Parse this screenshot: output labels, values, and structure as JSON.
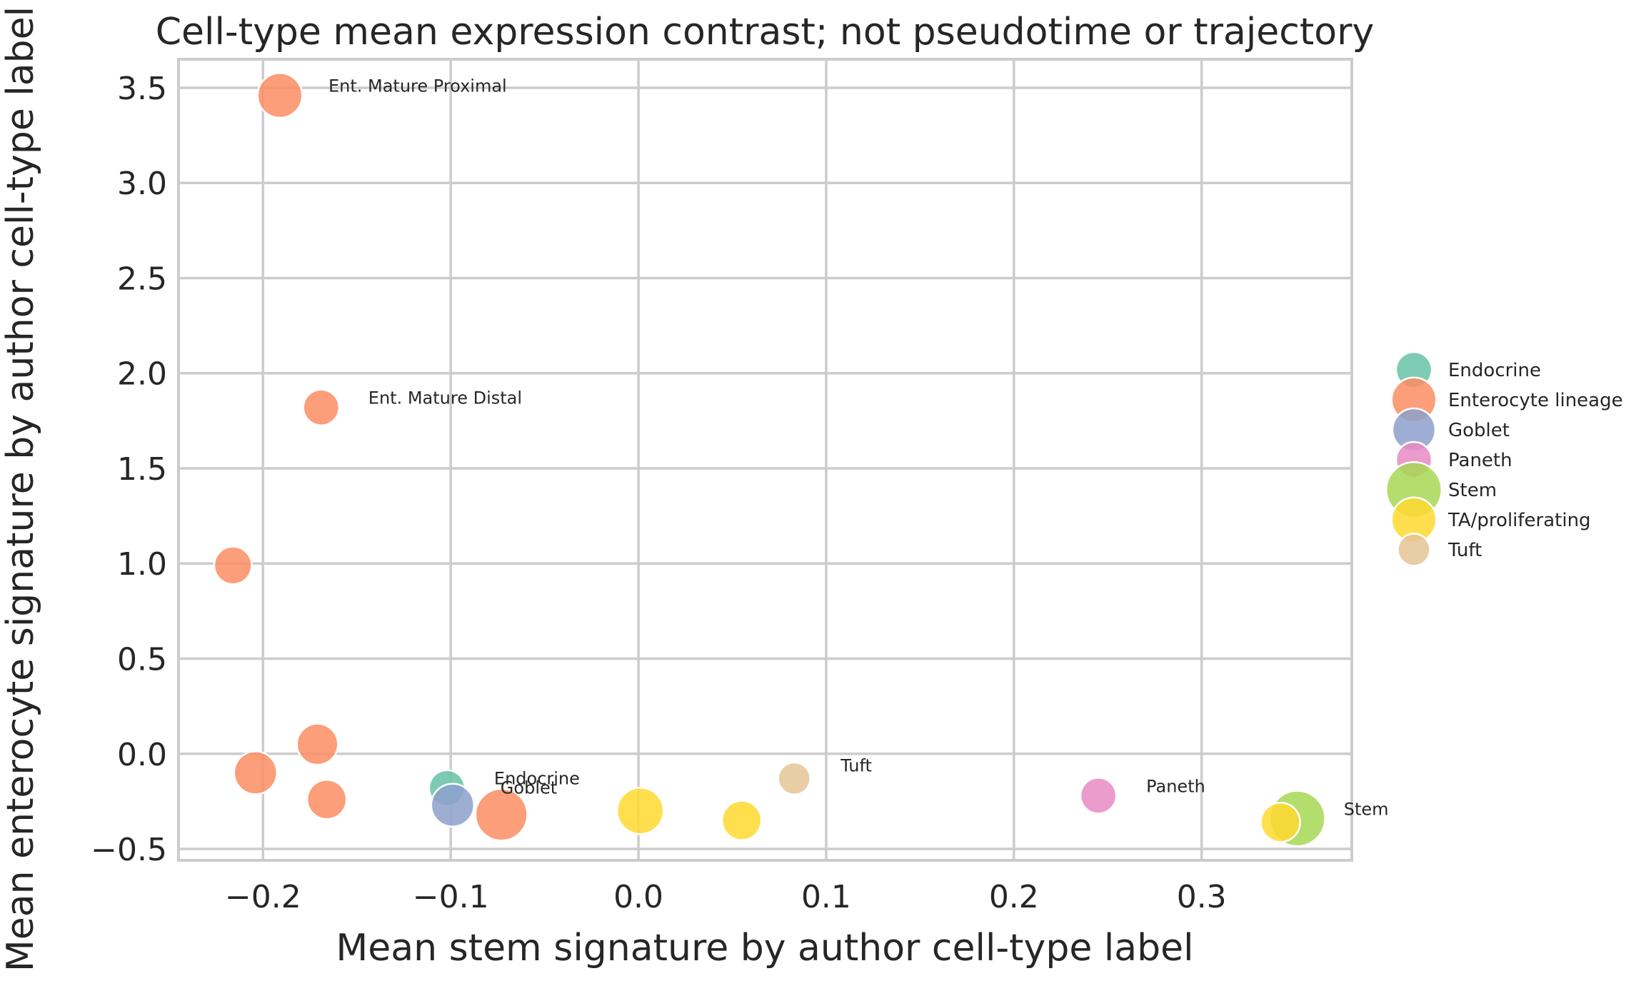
{
  "chart_data": {
    "type": "scatter",
    "title": "Cell-type mean expression contrast; not pseudotime or trajectory",
    "xlabel": "Mean stem signature by author cell-type label",
    "ylabel": "Mean enterocyte signature by author cell-type label",
    "xlim": [
      -0.245,
      0.38
    ],
    "ylim": [
      -0.56,
      3.65
    ],
    "x_ticks": [
      -0.2,
      -0.1,
      0.0,
      0.1,
      0.2,
      0.3
    ],
    "x_tick_labels": [
      "−0.2",
      "−0.1",
      "0.0",
      "0.1",
      "0.2",
      "0.3"
    ],
    "y_ticks": [
      -0.5,
      0.0,
      0.5,
      1.0,
      1.5,
      2.0,
      2.5,
      3.0,
      3.5
    ],
    "y_tick_labels": [
      "−0.5",
      "0.0",
      "0.5",
      "1.0",
      "1.5",
      "2.0",
      "2.5",
      "3.0",
      "3.5"
    ],
    "grid": true,
    "legend_position": "right",
    "series": [
      {
        "name": "Endocrine",
        "color": "#66c2a5",
        "legend_size": 1.0,
        "points": [
          {
            "x": -0.102,
            "y": -0.18,
            "size": 1.0
          }
        ]
      },
      {
        "name": "Enterocyte lineage",
        "color": "#fc8d62",
        "legend_size": 1.25,
        "points": [
          {
            "x": -0.191,
            "y": 3.46,
            "size": 1.25
          },
          {
            "x": -0.169,
            "y": 1.82,
            "size": 1.0
          },
          {
            "x": -0.216,
            "y": 0.99,
            "size": 1.05
          },
          {
            "x": -0.171,
            "y": 0.05,
            "size": 1.15
          },
          {
            "x": -0.204,
            "y": -0.1,
            "size": 1.2
          },
          {
            "x": -0.166,
            "y": -0.24,
            "size": 1.1
          },
          {
            "x": -0.073,
            "y": -0.32,
            "size": 1.45
          }
        ]
      },
      {
        "name": "Goblet",
        "color": "#8da0cb",
        "legend_size": 1.2,
        "points": [
          {
            "x": -0.099,
            "y": -0.27,
            "size": 1.2
          }
        ]
      },
      {
        "name": "Paneth",
        "color": "#e78ac3",
        "legend_size": 1.0,
        "points": [
          {
            "x": 0.245,
            "y": -0.22,
            "size": 1.0
          }
        ]
      },
      {
        "name": "Stem",
        "color": "#a6d854",
        "legend_size": 1.55,
        "points": [
          {
            "x": 0.351,
            "y": -0.34,
            "size": 1.55
          }
        ]
      },
      {
        "name": "TA/proliferating",
        "color": "#ffd92f",
        "legend_size": 1.25,
        "points": [
          {
            "x": 0.001,
            "y": -0.3,
            "size": 1.3
          },
          {
            "x": 0.055,
            "y": -0.35,
            "size": 1.1
          },
          {
            "x": 0.342,
            "y": -0.36,
            "size": 1.1
          }
        ]
      },
      {
        "name": "Tuft",
        "color": "#e5c494",
        "legend_size": 0.9,
        "points": [
          {
            "x": 0.083,
            "y": -0.13,
            "size": 0.9
          }
        ]
      }
    ],
    "annotations": [
      {
        "text": "Ent. Mature Proximal",
        "x": -0.191,
        "y": 3.46
      },
      {
        "text": "Ent. Mature Distal",
        "x": -0.169,
        "y": 1.82
      },
      {
        "text": "Endocrine",
        "x": -0.102,
        "y": -0.18
      },
      {
        "text": "Goblet",
        "x": -0.099,
        "y": -0.27
      },
      {
        "text": "Tuft",
        "x": 0.083,
        "y": -0.13
      },
      {
        "text": "Paneth",
        "x": 0.245,
        "y": -0.22
      },
      {
        "text": "Stem",
        "x": 0.351,
        "y": -0.34
      }
    ]
  }
}
